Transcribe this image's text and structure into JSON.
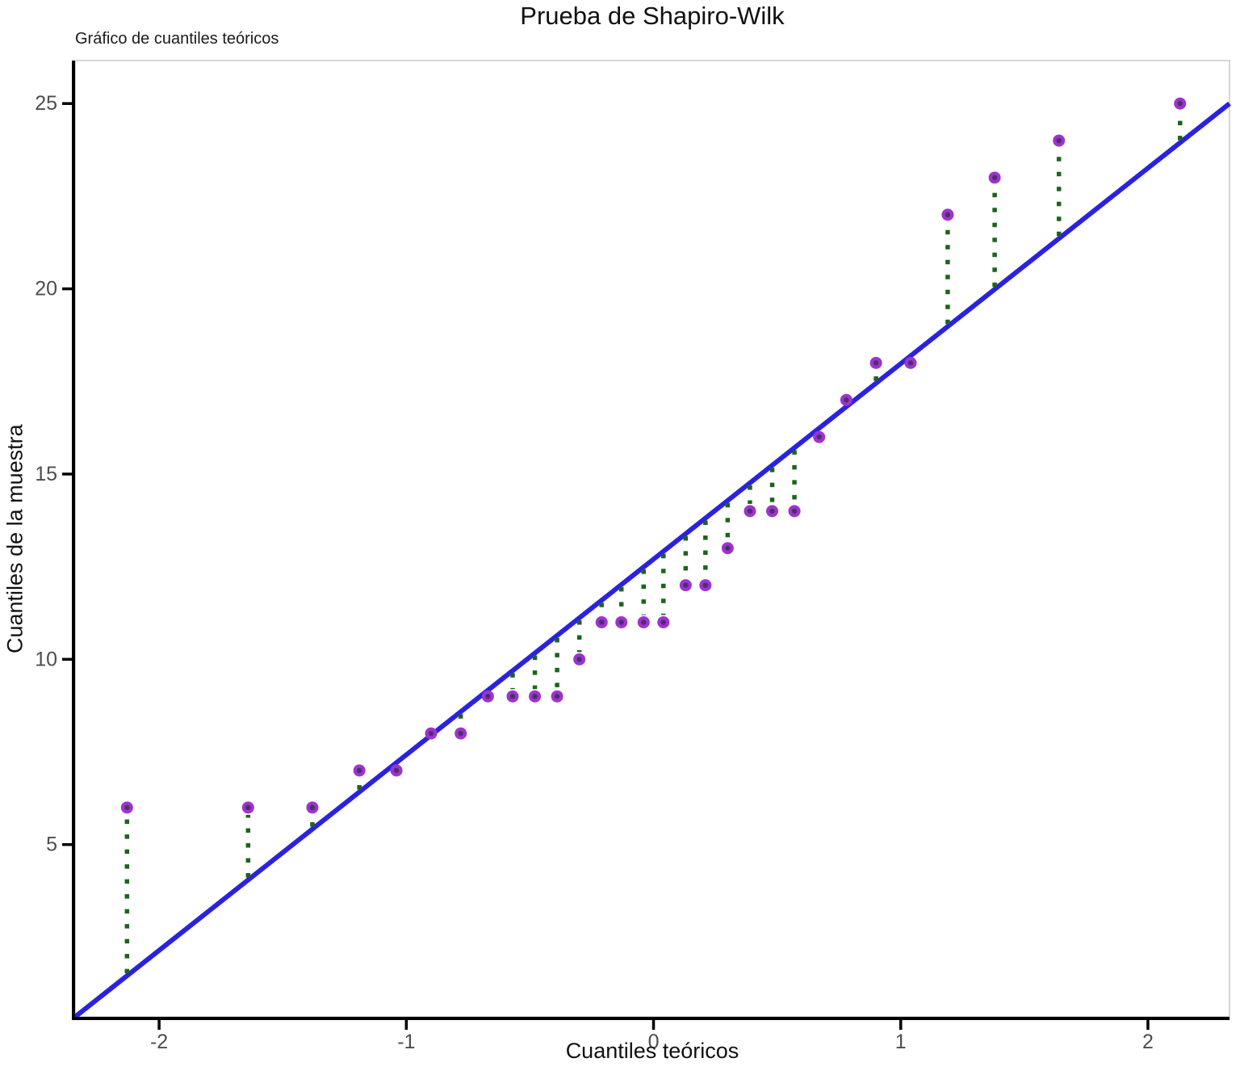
{
  "chart_data": {
    "type": "scatter",
    "subtype": "qq-plot",
    "title": "Prueba de Shapiro-Wilk",
    "subtitle": "Gráfico de cuantiles teóricos",
    "xlabel": "Cuantiles teóricos",
    "ylabel": "Cuantiles de la muestra",
    "xlim": [
      -2.34,
      2.33
    ],
    "ylim": [
      0.35,
      26.16
    ],
    "xticks": [
      -2,
      -1,
      0,
      1,
      2
    ],
    "yticks": [
      5,
      10,
      15,
      20,
      25
    ],
    "grid": false,
    "legend": false,
    "reference_line": {
      "x1": -2.34,
      "y1": 0.35,
      "x2": 2.33,
      "y2": 25.0
    },
    "points": [
      {
        "x": -2.13,
        "y": 6
      },
      {
        "x": -1.64,
        "y": 6
      },
      {
        "x": -1.38,
        "y": 6
      },
      {
        "x": -1.19,
        "y": 7
      },
      {
        "x": -1.04,
        "y": 7
      },
      {
        "x": -0.9,
        "y": 8
      },
      {
        "x": -0.78,
        "y": 8
      },
      {
        "x": -0.67,
        "y": 9
      },
      {
        "x": -0.57,
        "y": 9
      },
      {
        "x": -0.48,
        "y": 9
      },
      {
        "x": -0.39,
        "y": 9
      },
      {
        "x": -0.3,
        "y": 10
      },
      {
        "x": -0.21,
        "y": 11
      },
      {
        "x": -0.13,
        "y": 11
      },
      {
        "x": -0.04,
        "y": 11
      },
      {
        "x": 0.04,
        "y": 11
      },
      {
        "x": 0.13,
        "y": 12
      },
      {
        "x": 0.21,
        "y": 12
      },
      {
        "x": 0.3,
        "y": 13
      },
      {
        "x": 0.39,
        "y": 14
      },
      {
        "x": 0.48,
        "y": 14
      },
      {
        "x": 0.57,
        "y": 14
      },
      {
        "x": 0.67,
        "y": 16
      },
      {
        "x": 0.78,
        "y": 17
      },
      {
        "x": 0.9,
        "y": 18
      },
      {
        "x": 1.04,
        "y": 18
      },
      {
        "x": 1.19,
        "y": 22
      },
      {
        "x": 1.38,
        "y": 23
      },
      {
        "x": 1.64,
        "y": 24
      },
      {
        "x": 2.13,
        "y": 25
      }
    ],
    "colors": {
      "reference_line": "#2a22e0",
      "point_fill": "#9d33cf",
      "point_center": "#4b2f6e",
      "residual_dots": "#1c641c",
      "axis": "#000000",
      "tick_label": "#4d4d4d",
      "panel_border": "#cacaca",
      "background": "#ffffff"
    }
  }
}
